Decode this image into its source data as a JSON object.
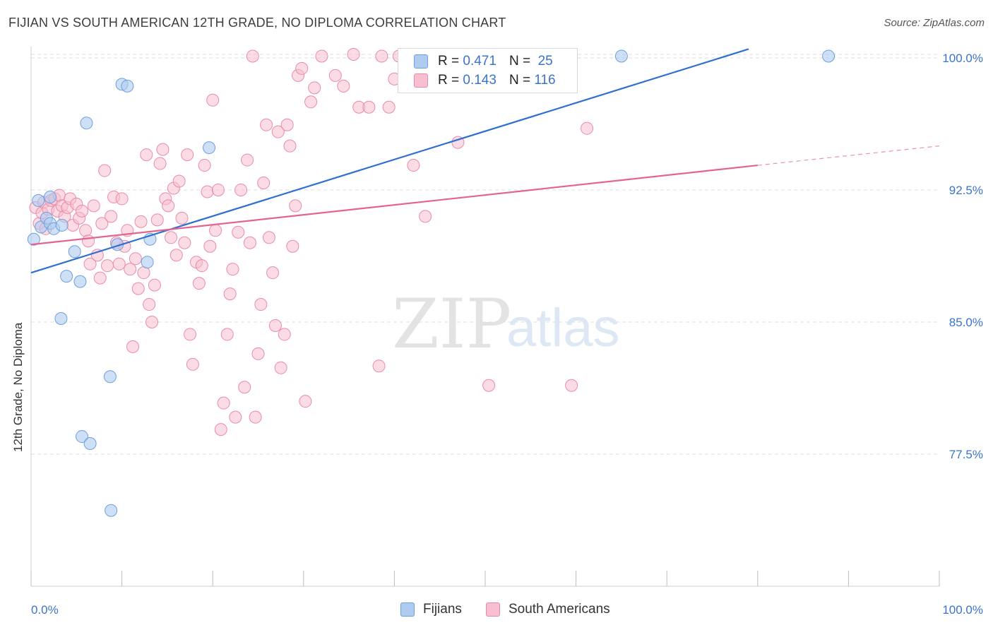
{
  "header": {
    "title": "FIJIAN VS SOUTH AMERICAN 12TH GRADE, NO DIPLOMA CORRELATION CHART",
    "source": "Source: ZipAtlas.com"
  },
  "watermark": {
    "zip": "ZIP",
    "atlas": "atlas"
  },
  "legend": {
    "rows": [
      {
        "r_label": "R =",
        "r_value": "0.471",
        "n_label": "N =",
        "n_value": "25"
      },
      {
        "r_label": "R =",
        "r_value": "0.143",
        "n_label": "N =",
        "n_value": "116"
      }
    ]
  },
  "bottom_legend": {
    "fijians": "Fijians",
    "south_americans": "South Americans"
  },
  "colors": {
    "fijians_fill": "#aecbf0",
    "fijians_stroke": "#6f9fdc",
    "fijians_line": "#2e6fd0",
    "sa_fill": "#f7bfd0",
    "sa_stroke": "#e98aaa",
    "sa_line": "#e2648f",
    "tick_label": "#3a74c9",
    "grid": "#dcdcdc"
  },
  "chart_data": {
    "type": "scatter",
    "title": "FIJIAN VS SOUTH AMERICAN 12TH GRADE, NO DIPLOMA CORRELATION CHART",
    "xlabel": "",
    "ylabel": "12th Grade, No Diploma",
    "xlim": [
      0,
      100
    ],
    "ylim": [
      70,
      100.8
    ],
    "x_ticks": [
      "0.0%",
      "100.0%"
    ],
    "y_ticks": [
      {
        "value": 100.0,
        "label": "100.0%"
      },
      {
        "value": 92.5,
        "label": "92.5%"
      },
      {
        "value": 85.0,
        "label": "85.0%"
      },
      {
        "value": 77.5,
        "label": "77.5%"
      }
    ],
    "grid": true,
    "legend_position": "top-center",
    "series": [
      {
        "name": "Fijians",
        "stats": {
          "R": 0.471,
          "N": 25
        },
        "trend": {
          "x": [
            0,
            79
          ],
          "y": [
            87.8,
            100.5
          ]
        },
        "points": [
          [
            0.3,
            89.7
          ],
          [
            0.8,
            91.9
          ],
          [
            1.1,
            90.4
          ],
          [
            1.7,
            90.9
          ],
          [
            2.1,
            90.6
          ],
          [
            2.5,
            90.3
          ],
          [
            2.1,
            92.1
          ],
          [
            3.4,
            90.5
          ],
          [
            3.3,
            85.2
          ],
          [
            3.9,
            87.6
          ],
          [
            4.8,
            89.0
          ],
          [
            5.4,
            87.3
          ],
          [
            5.6,
            78.5
          ],
          [
            6.1,
            96.3
          ],
          [
            6.5,
            78.1
          ],
          [
            8.7,
            81.9
          ],
          [
            8.8,
            74.3
          ],
          [
            9.5,
            89.4
          ],
          [
            10.0,
            98.5
          ],
          [
            10.6,
            98.4
          ],
          [
            12.8,
            88.4
          ],
          [
            13.1,
            89.7
          ],
          [
            19.6,
            94.9
          ],
          [
            65.0,
            100.1
          ],
          [
            87.8,
            100.1
          ]
        ]
      },
      {
        "name": "South Americans",
        "stats": {
          "R": 0.143,
          "N": 116
        },
        "trend": {
          "x": [
            0,
            80
          ],
          "y": [
            89.4,
            93.9
          ]
        },
        "trend_dashed": {
          "x": [
            80,
            100
          ],
          "y": [
            93.9,
            95.0
          ]
        },
        "points": [
          [
            0.5,
            91.5
          ],
          [
            0.9,
            90.6
          ],
          [
            1.2,
            91.2
          ],
          [
            1.4,
            91.8
          ],
          [
            1.6,
            90.3
          ],
          [
            1.9,
            91.4
          ],
          [
            2.2,
            91.9
          ],
          [
            2.6,
            92.0
          ],
          [
            2.9,
            91.3
          ],
          [
            3.1,
            92.2
          ],
          [
            3.4,
            91.6
          ],
          [
            3.7,
            91.0
          ],
          [
            4.0,
            91.5
          ],
          [
            4.3,
            92.0
          ],
          [
            4.6,
            90.5
          ],
          [
            5.0,
            91.7
          ],
          [
            5.3,
            90.9
          ],
          [
            5.6,
            91.3
          ],
          [
            6.0,
            90.2
          ],
          [
            6.3,
            89.6
          ],
          [
            6.5,
            88.3
          ],
          [
            6.9,
            91.6
          ],
          [
            7.3,
            88.8
          ],
          [
            7.6,
            87.5
          ],
          [
            7.8,
            90.6
          ],
          [
            8.1,
            93.6
          ],
          [
            8.4,
            88.2
          ],
          [
            8.8,
            91.0
          ],
          [
            9.1,
            92.1
          ],
          [
            9.4,
            89.5
          ],
          [
            9.7,
            88.3
          ],
          [
            10.0,
            92.0
          ],
          [
            10.3,
            89.3
          ],
          [
            10.6,
            90.2
          ],
          [
            10.9,
            88.0
          ],
          [
            11.2,
            83.6
          ],
          [
            11.5,
            88.6
          ],
          [
            11.8,
            86.9
          ],
          [
            12.1,
            90.7
          ],
          [
            12.4,
            87.8
          ],
          [
            12.7,
            94.5
          ],
          [
            13.0,
            86.0
          ],
          [
            13.3,
            85.0
          ],
          [
            13.6,
            87.1
          ],
          [
            13.9,
            90.8
          ],
          [
            14.2,
            94.0
          ],
          [
            14.5,
            94.8
          ],
          [
            14.8,
            92.0
          ],
          [
            15.1,
            91.6
          ],
          [
            15.4,
            89.8
          ],
          [
            15.7,
            92.6
          ],
          [
            16.0,
            88.8
          ],
          [
            16.3,
            93.0
          ],
          [
            16.6,
            90.9
          ],
          [
            16.9,
            89.5
          ],
          [
            17.2,
            94.5
          ],
          [
            17.5,
            84.3
          ],
          [
            17.8,
            82.6
          ],
          [
            18.2,
            88.4
          ],
          [
            18.5,
            87.2
          ],
          [
            18.8,
            88.2
          ],
          [
            19.1,
            93.9
          ],
          [
            19.4,
            92.4
          ],
          [
            19.7,
            89.3
          ],
          [
            20.0,
            97.6
          ],
          [
            20.3,
            90.2
          ],
          [
            20.6,
            92.5
          ],
          [
            20.9,
            78.9
          ],
          [
            21.2,
            80.4
          ],
          [
            21.6,
            84.3
          ],
          [
            21.9,
            86.6
          ],
          [
            22.2,
            88.0
          ],
          [
            22.5,
            79.6
          ],
          [
            22.8,
            90.1
          ],
          [
            23.1,
            92.5
          ],
          [
            23.5,
            81.3
          ],
          [
            23.8,
            94.2
          ],
          [
            24.1,
            89.5
          ],
          [
            24.4,
            100.1
          ],
          [
            24.7,
            79.6
          ],
          [
            25.0,
            83.2
          ],
          [
            25.3,
            86.0
          ],
          [
            25.6,
            92.9
          ],
          [
            25.9,
            96.2
          ],
          [
            26.2,
            89.8
          ],
          [
            26.6,
            87.8
          ],
          [
            26.9,
            84.8
          ],
          [
            27.2,
            95.8
          ],
          [
            27.5,
            82.4
          ],
          [
            27.9,
            84.3
          ],
          [
            28.2,
            96.2
          ],
          [
            28.5,
            95.0
          ],
          [
            28.8,
            89.3
          ],
          [
            29.1,
            91.6
          ],
          [
            29.4,
            99.0
          ],
          [
            29.8,
            99.4
          ],
          [
            30.2,
            80.5
          ],
          [
            30.8,
            97.5
          ],
          [
            31.2,
            98.3
          ],
          [
            32.0,
            100.1
          ],
          [
            33.5,
            99.0
          ],
          [
            34.4,
            98.4
          ],
          [
            35.5,
            100.2
          ],
          [
            36.1,
            97.2
          ],
          [
            37.2,
            97.2
          ],
          [
            38.3,
            82.5
          ],
          [
            38.6,
            100.1
          ],
          [
            39.4,
            97.2
          ],
          [
            40.0,
            98.8
          ],
          [
            40.5,
            100.1
          ],
          [
            42.1,
            93.9
          ],
          [
            43.4,
            91.0
          ],
          [
            47.0,
            95.2
          ],
          [
            50.4,
            81.4
          ],
          [
            59.5,
            81.4
          ],
          [
            61.2,
            96.0
          ]
        ]
      }
    ]
  }
}
